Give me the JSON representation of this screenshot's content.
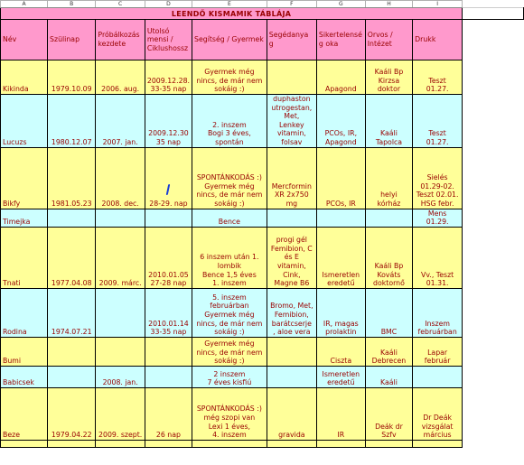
{
  "column_letters": [
    "A",
    "B",
    "C",
    "D",
    "E",
    "F",
    "G",
    "H",
    "I"
  ],
  "title": "LEENDŐ KISMAMIK TÁBLÁJA",
  "headers": {
    "nev": "Név",
    "szuletes": "Szülinap",
    "probal": "Próbálkozás kezdete",
    "ciklus": "Utolsó mensi / Ciklushossz",
    "segitseg": "Segítség / Gyermek",
    "segedanyag": "Segédanya g",
    "sikertelen": "Sikertelensé g oka",
    "orvos": "Orvos / Intézet",
    "drukk": "Drukk"
  },
  "rows": [
    {
      "nev": "Kikinda",
      "szuletes": "1979.10.09",
      "probal": "2006. aug.",
      "ciklus": "2009.12.28.\n33-35 nap",
      "segitseg": "Gyermek még\nnincs, de már nem\nsokáig :)",
      "segedanyag": "",
      "sikertelen": "Apagond",
      "orvos": "Kaáli Bp\nKirzsa\ndoktor",
      "drukk": "Teszt\n01.27."
    },
    {
      "nev": "Lucuzs",
      "szuletes": "1980.12.07",
      "probal": "2007. jan.",
      "ciklus": "2009.12.30\n35 nap",
      "segitseg": "2. inszem\nBogi 3 éves,\nspontán",
      "segedanyag": "duphaston\nutrogestan,\nMet,\nLenkey\nvitamin,\nfolsav",
      "sikertelen": "PCOs, IR,\nApagond",
      "orvos": "Kaáli\nTapolca",
      "drukk": "Teszt\n01.27."
    },
    {
      "nev": "Bikfy",
      "szuletes": "1981.05.23",
      "probal": "2008. dec.",
      "ciklus": "28-29. nap",
      "segitseg": "SPONTÁNKODÁS :)\nGyermek még\nnincs, de már nem\nsokáig :)",
      "segedanyag": "Mercformin\nXR 2x750\nmg",
      "sikertelen": "PCOs, IR",
      "orvos": "helyi\nkórház",
      "drukk": "Sielés\n01.29-02.\nTeszt 02.01.\nHSG febr."
    },
    {
      "nev": "Timejka",
      "szuletes": "",
      "probal": "",
      "ciklus": "",
      "segitseg": "Bence",
      "segedanyag": "",
      "sikertelen": "",
      "orvos": "",
      "drukk": "Mens\n01.29."
    },
    {
      "nev": "Tnati",
      "szuletes": "1977.04.08",
      "probal": "2009. márc.",
      "ciklus": "2010.01.05\n27-28 nap",
      "segitseg": "6 inszem után 1.\nlombik\nBence 1,5 éves\n1. inszem",
      "segedanyag": "progi gél\nFemibion, C\nés E\nvitamin,\nCink,\nMagne B6",
      "sikertelen": "Ismeretlen\neredetű",
      "orvos": "Kaáli Bp\nKováts\ndoktornő",
      "drukk": "Vv., Teszt\n01.31."
    },
    {
      "nev": "Rodina",
      "szuletes": "1974.07.21",
      "probal": "",
      "ciklus": "2010.01.14\n33-35 nap",
      "segitseg": "5. inszem\nfebruárban\nGyermek még\nnincs, de már nem\nsokáig :)",
      "segedanyag": "Bromo, Met,\nFemibion,\nbarátcserje\n, aloe vera",
      "sikertelen": "IR, magas\nprolaktin",
      "orvos": "BMC",
      "drukk": "Inszem\nfebruárban"
    },
    {
      "nev": "Bumi",
      "szuletes": "",
      "probal": "",
      "ciklus": "",
      "segitseg": "Gyermek még\nnincs, de már nem\nsokáig :)",
      "segedanyag": "",
      "sikertelen": "Ciszta",
      "orvos": "Kaáli\nDebrecen",
      "drukk": "Lapar\nfebruár"
    },
    {
      "nev": "Babicsek",
      "szuletes": "",
      "probal": "2008. jan.",
      "ciklus": "",
      "segitseg": "2 inszem\n7 éves kisfiú",
      "segedanyag": "",
      "sikertelen": "Ismeretlen\neredetű",
      "orvos": "Kaáli",
      "drukk": ""
    },
    {
      "nev": "Beze",
      "szuletes": "1979.04.22",
      "probal": "2009. szept.",
      "ciklus": "26 nap",
      "segitseg": "SPONTÁNKODÁS :)\nmég szopi van\nLexi 1 éves,\n4. inszem",
      "segedanyag": "gravida",
      "sikertelen": "IR",
      "orvos": "Deák dr\nSzfv",
      "drukk": "Dr Deák\nvizsgálat\nmárcius"
    }
  ],
  "colors": {
    "header_bg": "#ff99cc",
    "row_yellow": "#ffff99",
    "row_cyan": "#ccffff",
    "text": "#990000",
    "cursor": "#1a3fd6"
  }
}
